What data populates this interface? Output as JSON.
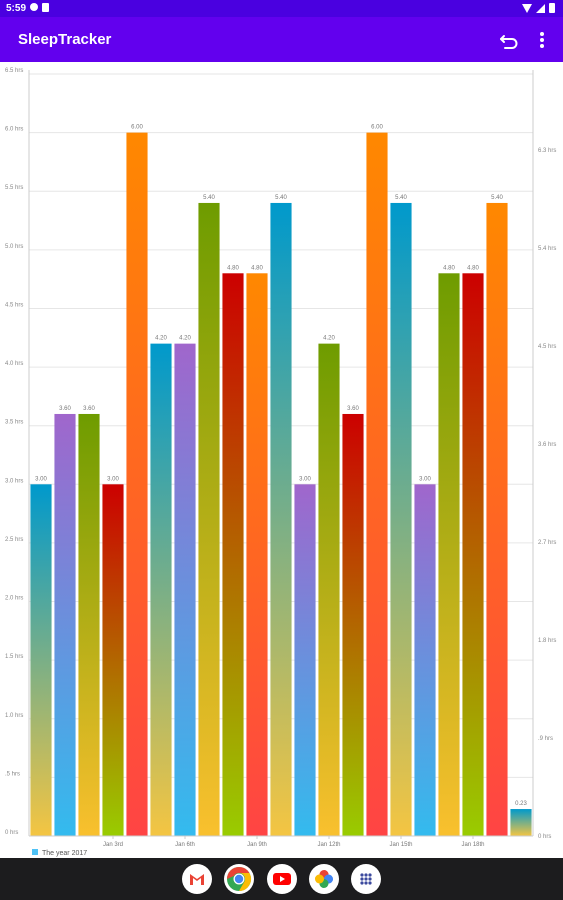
{
  "status_bar": {
    "time": "5:59",
    "left_icons": [
      "settings-icon",
      "sim-card-icon"
    ],
    "right_icons": [
      "wifi-icon",
      "signal-icon",
      "battery-icon"
    ]
  },
  "app_bar": {
    "title": "SleepTracker",
    "actions": [
      "undo-icon",
      "more-vert-icon"
    ]
  },
  "chart_data": {
    "type": "bar",
    "values": [
      3.0,
      3.6,
      3.6,
      3.0,
      6.0,
      4.2,
      4.2,
      5.4,
      4.8,
      4.8,
      5.4,
      3.0,
      4.2,
      3.6,
      6.0,
      5.4,
      3.0,
      4.8,
      4.8,
      5.4,
      0.23
    ],
    "value_labels": [
      "3.00",
      "3.60",
      "3.60",
      "3.00",
      "6.00",
      "4.20",
      "4.20",
      "5.40",
      "4.80",
      "4.80",
      "5.40",
      "3.00",
      "4.20",
      "3.60",
      "6.00",
      "5.40",
      "3.00",
      "4.80",
      "4.80",
      "5.40",
      "0.23"
    ],
    "x_tick_labels": [
      "Jan 3rd",
      "Jan 6th",
      "Jan 9th",
      "Jan 12th",
      "Jan 15th",
      "Jan 18th"
    ],
    "y_left_ticks": [
      "0 hrs",
      ".5 hrs",
      "1.0 hrs",
      "1.5 hrs",
      "2.0 hrs",
      "2.5 hrs",
      "3.0 hrs",
      "3.5 hrs",
      "4.0 hrs",
      "4.5 hrs",
      "5.0 hrs",
      "5.5 hrs",
      "6.0 hrs",
      "6.5 hrs"
    ],
    "y_right_ticks": [
      "0 hrs",
      ".9 hrs",
      "1.8 hrs",
      "2.7 hrs",
      "3.6 hrs",
      "4.5 hrs",
      "5.4 hrs",
      "6.3 hrs"
    ],
    "ylim": [
      0,
      6.5
    ],
    "legend": {
      "label": "The year 2017",
      "color": "#4fc3f7",
      "placement": "bottom-left"
    },
    "grid": true,
    "bar_gradients": [
      [
        "#0099cc",
        "#f4c542"
      ],
      [
        "#a066cc",
        "#33bbee"
      ],
      [
        "#6e9c00",
        "#f9c02e"
      ],
      [
        "#cc0000",
        "#99cc00"
      ],
      [
        "#ff8800",
        "#ff4444"
      ]
    ]
  },
  "nav_bar": {
    "apps": [
      "gmail-icon",
      "chrome-icon",
      "youtube-icon",
      "photos-icon",
      "app-drawer-icon"
    ]
  }
}
